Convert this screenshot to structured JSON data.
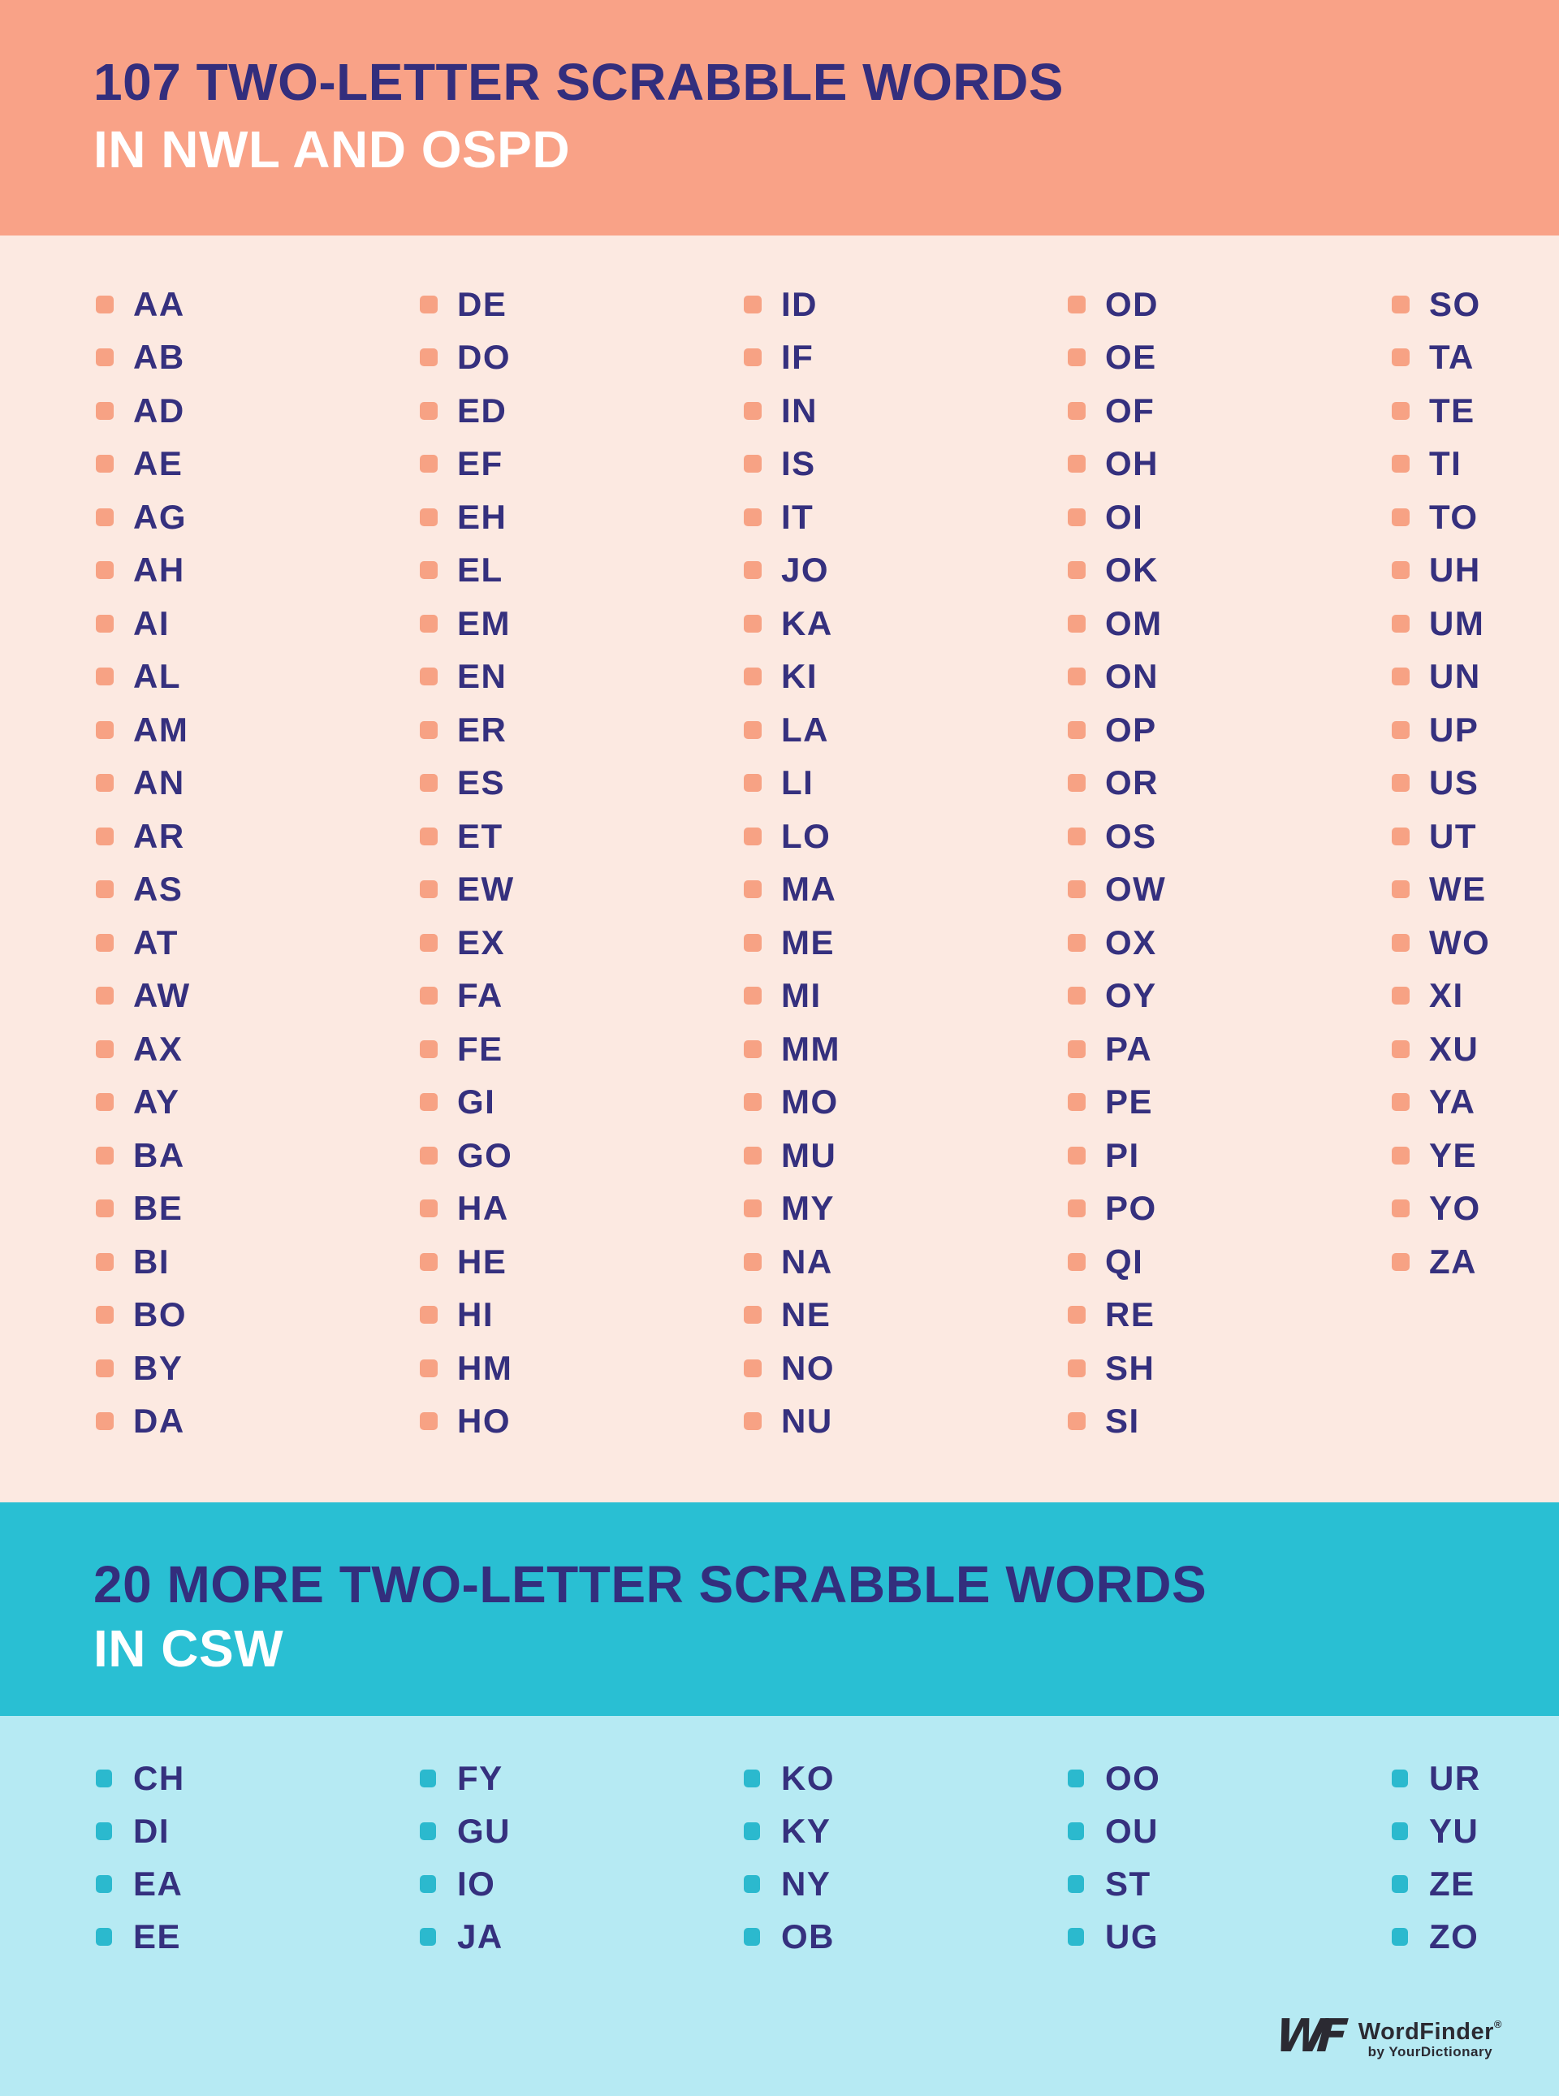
{
  "colors": {
    "header1_bg": "#F9A287",
    "list1_bg": "#FCE9E1",
    "header2_bg": "#29BFD3",
    "list2_bg": "#B6EAF3",
    "title_navy": "#332E7D",
    "word_navy": "#35307E",
    "bullet_orange": "#F7A284",
    "bullet_teal": "#2BB9CE",
    "subtitle_white": "#FFFFFF",
    "logo_charcoal": "#2B2A32"
  },
  "section1": {
    "title_line1": "107 TWO-LETTER SCRABBLE WORDS",
    "title_line2": "IN NWL AND OSPD",
    "columns": [
      [
        "AA",
        "AB",
        "AD",
        "AE",
        "AG",
        "AH",
        "AI",
        "AL",
        "AM",
        "AN",
        "AR",
        "AS",
        "AT",
        "AW",
        "AX",
        "AY",
        "BA",
        "BE",
        "BI",
        "BO",
        "BY",
        "DA"
      ],
      [
        "DE",
        "DO",
        "ED",
        "EF",
        "EH",
        "EL",
        "EM",
        "EN",
        "ER",
        "ES",
        "ET",
        "EW",
        "EX",
        "FA",
        "FE",
        "GI",
        "GO",
        "HA",
        "HE",
        "HI",
        "HM",
        "HO"
      ],
      [
        "ID",
        "IF",
        "IN",
        "IS",
        "IT",
        "JO",
        "KA",
        "KI",
        "LA",
        "LI",
        "LO",
        "MA",
        "ME",
        "MI",
        "MM",
        "MO",
        "MU",
        "MY",
        "NA",
        "NE",
        "NO",
        "NU"
      ],
      [
        "OD",
        "OE",
        "OF",
        "OH",
        "OI",
        "OK",
        "OM",
        "ON",
        "OP",
        "OR",
        "OS",
        "OW",
        "OX",
        "OY",
        "PA",
        "PE",
        "PI",
        "PO",
        "QI",
        "RE",
        "SH",
        "SI"
      ],
      [
        "SO",
        "TA",
        "TE",
        "TI",
        "TO",
        "UH",
        "UM",
        "UN",
        "UP",
        "US",
        "UT",
        "WE",
        "WO",
        "XI",
        "XU",
        "YA",
        "YE",
        "YO",
        "ZA"
      ]
    ]
  },
  "section2": {
    "title_line1": "20 MORE TWO-LETTER SCRABBLE WORDS",
    "title_line2": "IN CSW",
    "columns": [
      [
        "CH",
        "DI",
        "EA",
        "EE"
      ],
      [
        "FY",
        "GU",
        "IO",
        "JA"
      ],
      [
        "KO",
        "KY",
        "NY",
        "OB"
      ],
      [
        "OO",
        "OU",
        "ST",
        "UG"
      ],
      [
        "UR",
        "YU",
        "ZE",
        "ZO"
      ]
    ]
  },
  "footer": {
    "monogram": "WF",
    "brand": "WordFinder",
    "reg": "®",
    "byline": "by YourDictionary"
  }
}
